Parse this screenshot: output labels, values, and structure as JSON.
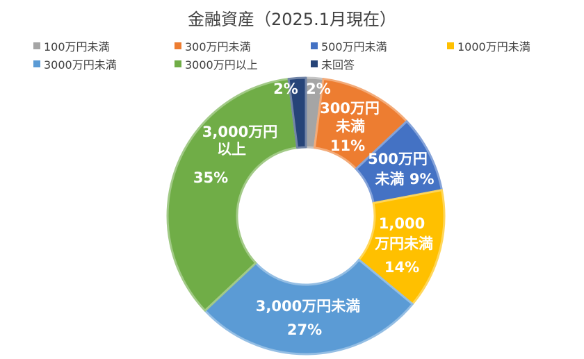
{
  "chart_data": {
    "type": "pie",
    "donut": true,
    "title": "金融資産（2025.1月現在）",
    "categories": [
      "100万円未満",
      "300万円未満",
      "500万円未満",
      "1000万円未満",
      "3000万円未満",
      "3000万円以上",
      "未回答"
    ],
    "values": [
      2,
      11,
      9,
      14,
      27,
      35,
      2
    ],
    "colors": [
      "#A5A5A5",
      "#ED7D31",
      "#4472C4",
      "#FFC000",
      "#5B9BD5",
      "#70AD47",
      "#264478"
    ],
    "data_labels": [
      [
        "2%"
      ],
      [
        "300万円",
        "未満",
        "11%"
      ],
      [
        "500万円",
        "未満 9%"
      ],
      [
        "1,000",
        "万円未満",
        "14%"
      ],
      [
        "3,000万円未満",
        "27%"
      ],
      [
        "3,000万円",
        "以上",
        "35%"
      ],
      [
        "2%"
      ]
    ],
    "legend_position": "top"
  }
}
